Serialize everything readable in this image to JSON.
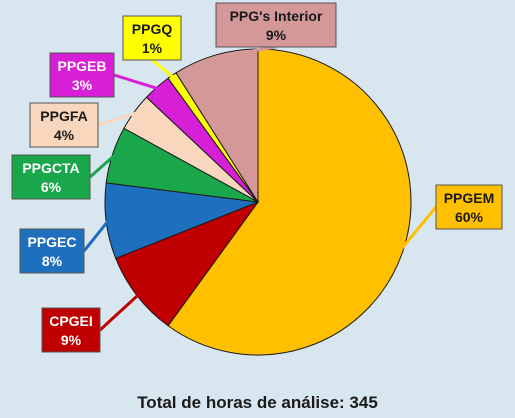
{
  "chart_data": {
    "type": "pie",
    "caption": "Total de horas de análise: 345",
    "slices": [
      {
        "label": "PPGEM",
        "percent_label": "60%",
        "value": 60,
        "color": "#ffc000",
        "text_color": "#1a1a1a"
      },
      {
        "label": "CPGEI",
        "percent_label": "9%",
        "value": 9,
        "color": "#c00000",
        "text_color": "#ffffff"
      },
      {
        "label": "PPGEC",
        "percent_label": "8%",
        "value": 8,
        "color": "#1f6fbf",
        "text_color": "#ffffff"
      },
      {
        "label": "PPGCTA",
        "percent_label": "6%",
        "value": 6,
        "color": "#1aa64b",
        "text_color": "#ffffff"
      },
      {
        "label": "PPGFA",
        "percent_label": "4%",
        "value": 4,
        "color": "#f8d7bd",
        "text_color": "#1a1a1a"
      },
      {
        "label": "PPGEB",
        "percent_label": "3%",
        "value": 3,
        "color": "#d61fd6",
        "text_color": "#ffffff"
      },
      {
        "label": "PPGQ",
        "percent_label": "1%",
        "value": 1,
        "color": "#ffff00",
        "text_color": "#1a1a1a"
      },
      {
        "label": "PPG's Interior",
        "percent_label": "9%",
        "value": 9,
        "color": "#d49898",
        "text_color": "#1a1a1a"
      }
    ]
  }
}
